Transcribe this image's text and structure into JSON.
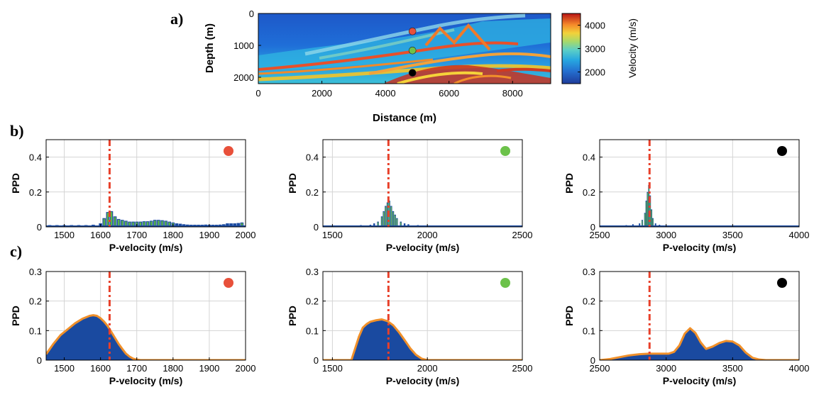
{
  "panel_labels": [
    "a)",
    "b)",
    "c)"
  ],
  "colors": {
    "red_marker": "#e8503a",
    "green_marker": "#6cc24a",
    "black_marker": "#000000",
    "fill_blue": "#1a4aa0",
    "edge_orange": "#f0902a",
    "green_bar": "#5cb84a",
    "true_line": "#e8402a"
  },
  "chart_data": [
    {
      "id": "a",
      "type": "heatmap",
      "xlabel": "Distance (m)",
      "ylabel": "Depth (m)",
      "xlim": [
        0,
        9200
      ],
      "ylim": [
        0,
        2200
      ],
      "y_reversed": true,
      "xticks": [
        0,
        2000,
        4000,
        6000,
        8000
      ],
      "yticks": [
        0,
        1000,
        2000
      ],
      "colorbar": {
        "label": "Velocity (m/s)",
        "range": [
          1500,
          4500
        ],
        "ticks": [
          2000,
          3000,
          4000
        ]
      },
      "markers": [
        {
          "x": 4850,
          "y": 560,
          "color": "red"
        },
        {
          "x": 4850,
          "y": 1160,
          "color": "green"
        },
        {
          "x": 4850,
          "y": 1860,
          "color": "black"
        }
      ]
    },
    {
      "id": "b1",
      "type": "bar",
      "xlabel": "P-velocity (m/s)",
      "ylabel": "PPD",
      "xlim": [
        1450,
        2000
      ],
      "ylim": [
        0,
        0.5
      ],
      "xticks": [
        1500,
        1600,
        1700,
        1800,
        1900,
        2000
      ],
      "yticks": [
        0,
        0.2,
        0.4
      ],
      "true_value": 1625,
      "marker": "red",
      "x": [
        1460,
        1480,
        1500,
        1520,
        1540,
        1560,
        1580,
        1600,
        1610,
        1620,
        1630,
        1640,
        1650,
        1660,
        1670,
        1680,
        1690,
        1700,
        1710,
        1720,
        1730,
        1740,
        1750,
        1760,
        1770,
        1780,
        1790,
        1800,
        1810,
        1820,
        1830,
        1840,
        1850,
        1860,
        1870,
        1880,
        1890,
        1900,
        1910,
        1920,
        1930,
        1940,
        1950,
        1960,
        1970,
        1980,
        1990
      ],
      "values": [
        0.01,
        0.01,
        0.01,
        0.01,
        0.01,
        0.01,
        0.012,
        0.02,
        0.05,
        0.085,
        0.09,
        0.06,
        0.045,
        0.04,
        0.035,
        0.03,
        0.03,
        0.03,
        0.03,
        0.032,
        0.032,
        0.035,
        0.04,
        0.04,
        0.038,
        0.035,
        0.03,
        0.025,
        0.02,
        0.018,
        0.015,
        0.013,
        0.012,
        0.012,
        0.012,
        0.012,
        0.013,
        0.012,
        0.012,
        0.012,
        0.013,
        0.015,
        0.02,
        0.02,
        0.02,
        0.022,
        0.025
      ]
    },
    {
      "id": "b2",
      "type": "bar",
      "xlabel": "P-velocity (m/s)",
      "ylabel": "PPD",
      "xlim": [
        1450,
        2500
      ],
      "ylim": [
        0,
        0.5
      ],
      "xticks": [
        1500,
        2000,
        2500
      ],
      "yticks": [
        0,
        0.2,
        0.4
      ],
      "true_value": 1795,
      "marker": "green",
      "x": [
        1500,
        1550,
        1600,
        1650,
        1700,
        1720,
        1740,
        1760,
        1770,
        1780,
        1790,
        1800,
        1810,
        1820,
        1830,
        1840,
        1860,
        1880,
        1900,
        1950,
        2000,
        2100,
        2200,
        2300,
        2400,
        2480
      ],
      "values": [
        0.005,
        0.005,
        0.008,
        0.01,
        0.012,
        0.02,
        0.03,
        0.06,
        0.09,
        0.12,
        0.14,
        0.15,
        0.12,
        0.09,
        0.07,
        0.05,
        0.03,
        0.02,
        0.015,
        0.01,
        0.008,
        0.006,
        0.005,
        0.005,
        0.005,
        0.005
      ]
    },
    {
      "id": "b3",
      "type": "bar",
      "xlabel": "P-velocity (m/s)",
      "ylabel": "PPD",
      "xlim": [
        2500,
        4000
      ],
      "ylim": [
        0,
        0.5
      ],
      "xticks": [
        2500,
        3000,
        3500,
        4000
      ],
      "yticks": [
        0,
        0.2,
        0.4
      ],
      "true_value": 2875,
      "marker": "black",
      "x": [
        2550,
        2600,
        2650,
        2700,
        2750,
        2800,
        2820,
        2840,
        2850,
        2860,
        2870,
        2880,
        2890,
        2900,
        2920,
        2950,
        3000,
        3100,
        3200,
        3400,
        3600,
        3800,
        3950
      ],
      "values": [
        0.005,
        0.005,
        0.008,
        0.01,
        0.015,
        0.02,
        0.04,
        0.08,
        0.15,
        0.2,
        0.24,
        0.18,
        0.1,
        0.05,
        0.02,
        0.012,
        0.008,
        0.005,
        0.004,
        0.003,
        0.003,
        0.003,
        0.003
      ]
    },
    {
      "id": "c1",
      "type": "area",
      "xlabel": "P-velocity (m/s)",
      "ylabel": "PPD",
      "xlim": [
        1450,
        2000
      ],
      "ylim": [
        0,
        0.3
      ],
      "xticks": [
        1500,
        1600,
        1700,
        1800,
        1900,
        2000
      ],
      "yticks": [
        0,
        0.1,
        0.2,
        0.3
      ],
      "true_value": 1625,
      "marker": "red",
      "x": [
        1450,
        1470,
        1490,
        1510,
        1530,
        1550,
        1570,
        1580,
        1590,
        1600,
        1610,
        1620,
        1630,
        1640,
        1650,
        1660,
        1670,
        1680,
        1690,
        1700,
        1710,
        1720,
        1750,
        2000
      ],
      "values": [
        0.02,
        0.055,
        0.085,
        0.105,
        0.125,
        0.14,
        0.15,
        0.152,
        0.15,
        0.142,
        0.13,
        0.115,
        0.095,
        0.075,
        0.055,
        0.038,
        0.022,
        0.012,
        0.005,
        0.002,
        0,
        0,
        0,
        0
      ]
    },
    {
      "id": "c2",
      "type": "area",
      "xlabel": "P-velocity (m/s)",
      "ylabel": "PPD",
      "xlim": [
        1450,
        2500
      ],
      "ylim": [
        0,
        0.3
      ],
      "xticks": [
        1500,
        2000,
        2500
      ],
      "yticks": [
        0,
        0.1,
        0.2,
        0.3
      ],
      "true_value": 1795,
      "marker": "green",
      "x": [
        1450,
        1600,
        1620,
        1640,
        1660,
        1680,
        1700,
        1730,
        1760,
        1790,
        1820,
        1850,
        1880,
        1910,
        1940,
        1970,
        2000,
        2100,
        2500
      ],
      "values": [
        0,
        0,
        0.04,
        0.08,
        0.11,
        0.122,
        0.13,
        0.135,
        0.138,
        0.132,
        0.118,
        0.095,
        0.068,
        0.04,
        0.018,
        0.005,
        0,
        0,
        0
      ]
    },
    {
      "id": "c3",
      "type": "area",
      "xlabel": "P-velocity (m/s)",
      "ylabel": "PPD",
      "xlim": [
        2500,
        4000
      ],
      "ylim": [
        0,
        0.3
      ],
      "xticks": [
        2500,
        3000,
        3500,
        4000
      ],
      "yticks": [
        0,
        0.1,
        0.2,
        0.3
      ],
      "true_value": 2875,
      "marker": "black",
      "x": [
        2500,
        2580,
        2650,
        2720,
        2800,
        2870,
        2950,
        3020,
        3060,
        3100,
        3140,
        3180,
        3220,
        3260,
        3300,
        3350,
        3400,
        3450,
        3500,
        3550,
        3600,
        3650,
        3700,
        3750,
        4000
      ],
      "values": [
        0,
        0.004,
        0.01,
        0.016,
        0.02,
        0.022,
        0.022,
        0.022,
        0.028,
        0.05,
        0.09,
        0.108,
        0.092,
        0.06,
        0.038,
        0.046,
        0.058,
        0.065,
        0.063,
        0.05,
        0.025,
        0.008,
        0.002,
        0,
        0
      ]
    }
  ]
}
